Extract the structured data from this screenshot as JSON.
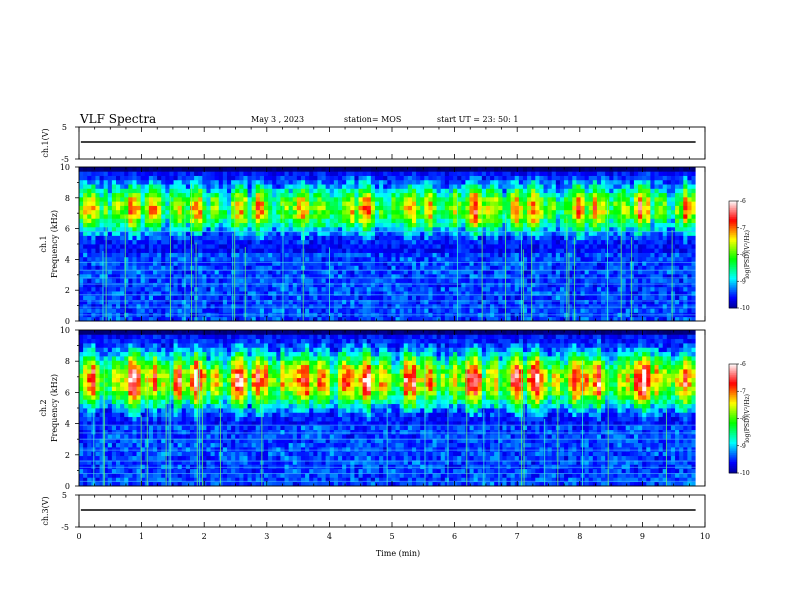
{
  "header": {
    "title": "VLF Spectra",
    "date": "May 3 , 2023",
    "station": "station= MOS",
    "start": "start UT =  23: 50: 1"
  },
  "chart_data": {
    "type": "heatmap",
    "x_label": "Time (min)",
    "x_ticks": [
      "0",
      "1",
      "2",
      "3",
      "4",
      "5",
      "6",
      "7",
      "8",
      "9",
      "10"
    ],
    "x_range": [
      0,
      10
    ],
    "data_end_min": 9.85,
    "panels": [
      {
        "id": "ch1-waveform",
        "ylabel": "ch.1(V)",
        "yticks": [
          "5",
          "-5"
        ],
        "ylim": [
          -5,
          5
        ],
        "trace_level": 0
      },
      {
        "id": "ch1-spectrogram",
        "ylabel_top": "ch.1",
        "ylabel": "Frequency (kHz)",
        "yticks": [
          "0",
          "2",
          "4",
          "6",
          "8",
          "10"
        ],
        "ylim": [
          0,
          10
        ],
        "band_center_khz": 7.3,
        "band_lower_edge_khz": 4.5,
        "horizontal_lines_khz": [
          0.4,
          0.9,
          1.3,
          1.7,
          2.4,
          2.8,
          3.3,
          3.8,
          5.8
        ],
        "colorbar": {
          "label": "log(PSD)(V²/Hz)",
          "ticks": [
            "-6",
            "-7",
            "-8",
            "-9",
            "-10"
          ],
          "range": [
            -10,
            -6
          ]
        }
      },
      {
        "id": "ch2-spectrogram",
        "ylabel_top": "ch.2",
        "ylabel": "Frequency (kHz)",
        "yticks": [
          "0",
          "2",
          "4",
          "6",
          "8",
          "10"
        ],
        "ylim": [
          0,
          10
        ],
        "band_center_khz": 6.8,
        "band_lower_edge_khz": 3.8,
        "horizontal_lines_khz": [
          0.3,
          0.8,
          1.2,
          1.6,
          2.3,
          3.0,
          3.4,
          3.9
        ],
        "colorbar": {
          "label": "log(PSD)(V²/Hz)",
          "ticks": [
            "-6",
            "-7",
            "-8",
            "-9",
            "-10"
          ],
          "range": [
            -10,
            -6
          ]
        }
      },
      {
        "id": "ch3-waveform",
        "ylabel": "ch.3(V)",
        "yticks": [
          "5",
          "-5"
        ],
        "ylim": [
          -5,
          5
        ],
        "trace_level": 0
      }
    ],
    "colors": {
      "colormap": [
        "#00003a",
        "#0000ff",
        "#00ffff",
        "#00ff00",
        "#ffff00",
        "#ff0000",
        "#ffffff"
      ]
    }
  }
}
